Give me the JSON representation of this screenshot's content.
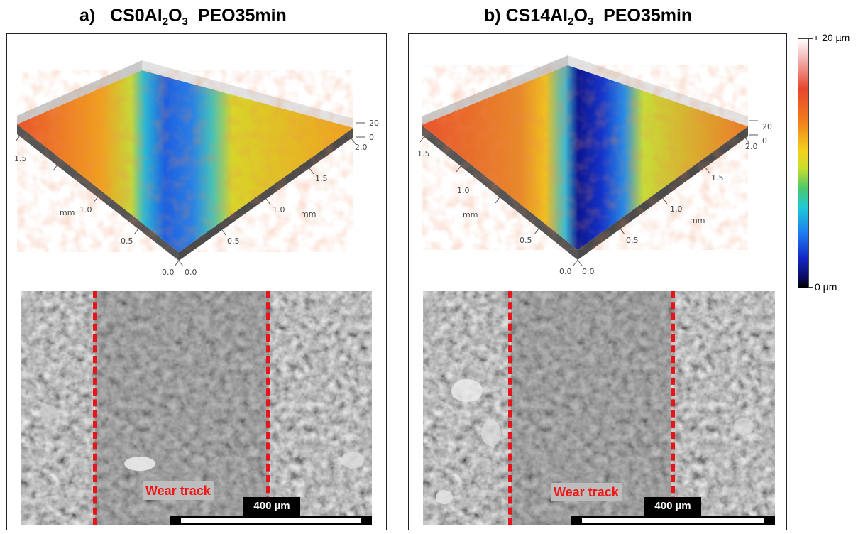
{
  "panel_a": {
    "letter": "a)",
    "title_parts": [
      "CS0Al",
      "2",
      "O",
      "3",
      "_PEO35min"
    ],
    "axis_left_ticks": [
      "0.0",
      "0.5",
      "1.0",
      "1.5"
    ],
    "axis_right_ticks": [
      "0.0",
      "0.5",
      "1.0",
      "1.5",
      "2.0"
    ],
    "axis_unit": "mm",
    "z_ticks": [
      "20",
      "0"
    ],
    "wear_label": "Wear track",
    "scale_label": "400 µm"
  },
  "panel_b": {
    "letter": "b)",
    "title_parts": [
      "CS14Al",
      "2",
      "O",
      "3",
      "_PEO35min"
    ],
    "axis_left_ticks": [
      "0.0",
      "0.5",
      "1.0",
      "1.5"
    ],
    "axis_right_ticks": [
      "0.0",
      "0.5",
      "1.0",
      "1.5",
      "2.0"
    ],
    "axis_unit": "mm",
    "z_ticks": [
      "20",
      "0"
    ],
    "wear_label": "Wear track",
    "scale_label": "400 µm"
  },
  "colorbar": {
    "top_label": "+ 20 µm",
    "bottom_label": "0 µm"
  },
  "colors": {
    "wear_line": "#e3171b",
    "wear_text": "#f01616",
    "surface_high": "#e8452c",
    "surface_mid": "#f3d21c",
    "track_low": "#1428c8"
  }
}
